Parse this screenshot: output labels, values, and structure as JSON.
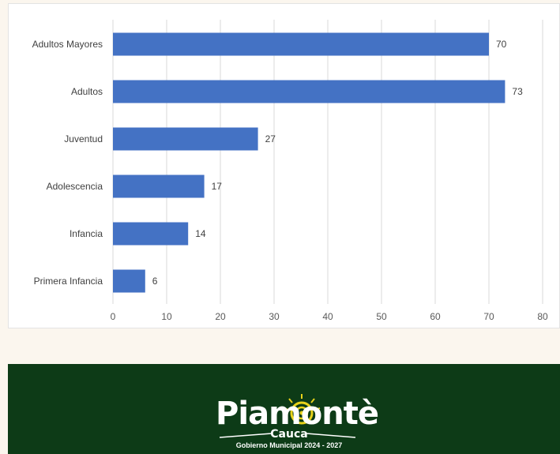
{
  "chart_data": {
    "type": "bar",
    "orientation": "horizontal",
    "categories": [
      "Adultos Mayores",
      "Adultos",
      "Juventud",
      "Adolescencia",
      "Infancia",
      "Primera Infancia"
    ],
    "values": [
      70,
      73,
      27,
      17,
      14,
      6
    ],
    "xlim": [
      0,
      80
    ],
    "xticks": [
      "0",
      "10",
      "20",
      "30",
      "40",
      "50",
      "60",
      "70",
      "80"
    ],
    "grid": true,
    "bar_color": "#4472c4",
    "title": "",
    "xlabel": "",
    "ylabel": ""
  },
  "footer": {
    "background": "#0d3b17",
    "logo": {
      "wordmark": "Piamontè",
      "subtitle": "Cauca",
      "tagline": "Gobierno Municipal 2024 - 2027"
    }
  }
}
